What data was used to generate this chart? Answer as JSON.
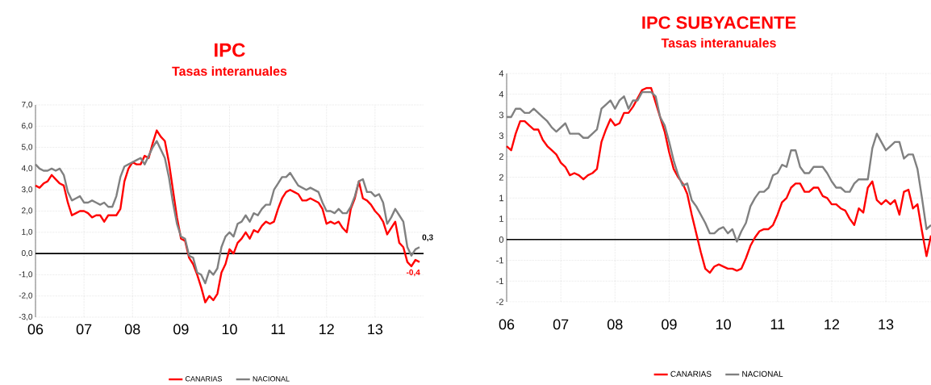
{
  "chart_data": [
    {
      "type": "line",
      "title": "IPC",
      "subtitle": "Tasas interanuales",
      "grid": true,
      "legend": "bottom",
      "ref_lines": [
        {
          "axis": "y",
          "value": 0,
          "color": "#000000"
        }
      ],
      "x": [
        "2006-01",
        "2006-02",
        "2006-03",
        "2006-04",
        "2006-05",
        "2006-06",
        "2006-07",
        "2006-08",
        "2006-09",
        "2006-10",
        "2006-11",
        "2006-12",
        "2007-01",
        "2007-02",
        "2007-03",
        "2007-04",
        "2007-05",
        "2007-06",
        "2007-07",
        "2007-08",
        "2007-09",
        "2007-10",
        "2007-11",
        "2007-12",
        "2008-01",
        "2008-02",
        "2008-03",
        "2008-04",
        "2008-05",
        "2008-06",
        "2008-07",
        "2008-08",
        "2008-09",
        "2008-10",
        "2008-11",
        "2008-12",
        "2009-01",
        "2009-02",
        "2009-03",
        "2009-04",
        "2009-05",
        "2009-06",
        "2009-07",
        "2009-08",
        "2009-09",
        "2009-10",
        "2009-11",
        "2009-12",
        "2010-01",
        "2010-02",
        "2010-03",
        "2010-04",
        "2010-05",
        "2010-06",
        "2010-07",
        "2010-08",
        "2010-09",
        "2010-10",
        "2010-11",
        "2010-12",
        "2011-01",
        "2011-02",
        "2011-03",
        "2011-04",
        "2011-05",
        "2011-06",
        "2011-07",
        "2011-08",
        "2011-09",
        "2011-10",
        "2011-11",
        "2011-12",
        "2012-01",
        "2012-02",
        "2012-03",
        "2012-04",
        "2012-05",
        "2012-06",
        "2012-07",
        "2012-08",
        "2012-09",
        "2012-10",
        "2012-11",
        "2012-12",
        "2013-01",
        "2013-02",
        "2013-03",
        "2013-04",
        "2013-05",
        "2013-06",
        "2013-07",
        "2013-08",
        "2013-09",
        "2013-10",
        "2013-11",
        "2013-12"
      ],
      "xlim": [
        "2006-01",
        "2014-01"
      ],
      "xticks": [
        {
          "value": "2006-01",
          "label": "06"
        },
        {
          "value": "2007-01",
          "label": "07"
        },
        {
          "value": "2008-01",
          "label": "08"
        },
        {
          "value": "2009-01",
          "label": "09"
        },
        {
          "value": "2010-01",
          "label": "10"
        },
        {
          "value": "2011-01",
          "label": "11"
        },
        {
          "value": "2012-01",
          "label": "12"
        },
        {
          "value": "2013-01",
          "label": "13"
        }
      ],
      "ylim": [
        -3,
        7
      ],
      "yticks": [
        {
          "value": -3,
          "label": "-3,0"
        },
        {
          "value": -2,
          "label": "-2,0"
        },
        {
          "value": -1,
          "label": "-1,0"
        },
        {
          "value": 0,
          "label": "0,0"
        },
        {
          "value": 1,
          "label": "1,0"
        },
        {
          "value": 2,
          "label": "2,0"
        },
        {
          "value": 3,
          "label": "3,0"
        },
        {
          "value": 4,
          "label": "4,0"
        },
        {
          "value": 5,
          "label": "5,0"
        },
        {
          "value": 6,
          "label": "6,0"
        },
        {
          "value": 7,
          "label": "7,0"
        }
      ],
      "series": [
        {
          "name": "CANARIAS",
          "color": "#ff0000",
          "values": [
            3.2,
            3.1,
            3.3,
            3.4,
            3.7,
            3.5,
            3.3,
            3.2,
            2.4,
            1.8,
            1.9,
            2.0,
            2.0,
            1.9,
            1.7,
            1.8,
            1.8,
            1.5,
            1.8,
            1.8,
            1.8,
            2.1,
            3.4,
            4.0,
            4.3,
            4.2,
            4.2,
            4.6,
            4.5,
            5.2,
            5.8,
            5.5,
            5.3,
            4.3,
            3.0,
            1.7,
            0.7,
            0.6,
            -0.2,
            -0.5,
            -1.0,
            -1.6,
            -2.3,
            -2.0,
            -2.2,
            -1.9,
            -0.9,
            -0.5,
            0.2,
            0.0,
            0.5,
            0.7,
            1.0,
            0.7,
            1.1,
            1.0,
            1.3,
            1.5,
            1.4,
            1.5,
            2.1,
            2.6,
            2.9,
            3.0,
            2.9,
            2.8,
            2.5,
            2.5,
            2.6,
            2.5,
            2.4,
            2.1,
            1.4,
            1.5,
            1.4,
            1.5,
            1.2,
            1.0,
            2.1,
            2.6,
            3.4,
            2.6,
            2.5,
            2.3,
            2.0,
            1.8,
            1.5,
            0.9,
            1.2,
            1.5,
            0.5,
            0.3,
            -0.4,
            -0.6,
            -0.3,
            -0.4
          ],
          "value_labels": [
            null,
            null,
            null,
            null,
            null,
            null,
            null,
            null,
            null,
            null,
            null,
            null,
            null,
            null,
            null,
            null,
            null,
            null,
            null,
            null,
            null,
            null,
            null,
            null,
            null,
            null,
            null,
            null,
            null,
            null,
            null,
            null,
            null,
            null,
            null,
            null,
            null,
            null,
            null,
            null,
            null,
            null,
            null,
            null,
            null,
            null,
            null,
            null,
            null,
            null,
            null,
            null,
            null,
            null,
            null,
            null,
            null,
            null,
            null,
            null,
            null,
            null,
            null,
            null,
            null,
            null,
            null,
            null,
            null,
            null,
            null,
            null,
            null,
            null,
            null,
            null,
            null,
            null,
            null,
            null,
            null,
            null,
            null,
            null,
            null,
            null,
            null,
            null,
            null,
            null,
            null,
            null,
            null,
            null,
            null,
            "-0,4"
          ]
        },
        {
          "name": "NACIONAL",
          "color": "#808080",
          "values": [
            4.2,
            4.0,
            3.9,
            3.9,
            4.0,
            3.9,
            4.0,
            3.7,
            2.9,
            2.5,
            2.6,
            2.7,
            2.4,
            2.4,
            2.5,
            2.4,
            2.3,
            2.4,
            2.2,
            2.2,
            2.7,
            3.6,
            4.1,
            4.2,
            4.3,
            4.4,
            4.5,
            4.2,
            4.6,
            5.0,
            5.3,
            4.9,
            4.5,
            3.6,
            2.4,
            1.4,
            0.8,
            0.7,
            -0.1,
            -0.2,
            -0.9,
            -1.0,
            -1.4,
            -0.8,
            -1.0,
            -0.7,
            0.3,
            0.8,
            1.0,
            0.8,
            1.4,
            1.5,
            1.8,
            1.5,
            1.9,
            1.8,
            2.1,
            2.3,
            2.3,
            3.0,
            3.3,
            3.6,
            3.6,
            3.8,
            3.5,
            3.2,
            3.1,
            3.0,
            3.1,
            3.0,
            2.9,
            2.4,
            2.0,
            2.0,
            1.9,
            2.1,
            1.9,
            1.9,
            2.2,
            2.7,
            3.4,
            3.5,
            2.9,
            2.9,
            2.7,
            2.8,
            2.4,
            1.4,
            1.7,
            2.1,
            1.8,
            1.5,
            0.3,
            -0.1,
            0.2,
            0.3
          ],
          "value_labels": [
            null,
            null,
            null,
            null,
            null,
            null,
            null,
            null,
            null,
            null,
            null,
            null,
            null,
            null,
            null,
            null,
            null,
            null,
            null,
            null,
            null,
            null,
            null,
            null,
            null,
            null,
            null,
            null,
            null,
            null,
            null,
            null,
            null,
            null,
            null,
            null,
            null,
            null,
            null,
            null,
            null,
            null,
            null,
            null,
            null,
            null,
            null,
            null,
            null,
            null,
            null,
            null,
            null,
            null,
            null,
            null,
            null,
            null,
            null,
            null,
            null,
            null,
            null,
            null,
            null,
            null,
            null,
            null,
            null,
            null,
            null,
            null,
            null,
            null,
            null,
            null,
            null,
            null,
            null,
            null,
            null,
            null,
            null,
            null,
            null,
            null,
            null,
            null,
            null,
            null,
            null,
            null,
            null,
            null,
            null,
            "0,3"
          ]
        }
      ]
    },
    {
      "type": "line",
      "title": "IPC SUBYACENTE",
      "subtitle": "Tasas interanuales",
      "grid": true,
      "legend": "bottom",
      "ref_lines": [
        {
          "axis": "y",
          "value": 0,
          "color": "#000000"
        }
      ],
      "x": [
        "2006-01",
        "2006-02",
        "2006-03",
        "2006-04",
        "2006-05",
        "2006-06",
        "2006-07",
        "2006-08",
        "2006-09",
        "2006-10",
        "2006-11",
        "2006-12",
        "2007-01",
        "2007-02",
        "2007-03",
        "2007-04",
        "2007-05",
        "2007-06",
        "2007-07",
        "2007-08",
        "2007-09",
        "2007-10",
        "2007-11",
        "2007-12",
        "2008-01",
        "2008-02",
        "2008-03",
        "2008-04",
        "2008-05",
        "2008-06",
        "2008-07",
        "2008-08",
        "2008-09",
        "2008-10",
        "2008-11",
        "2008-12",
        "2009-01",
        "2009-02",
        "2009-03",
        "2009-04",
        "2009-05",
        "2009-06",
        "2009-07",
        "2009-08",
        "2009-09",
        "2009-10",
        "2009-11",
        "2009-12",
        "2010-01",
        "2010-02",
        "2010-03",
        "2010-04",
        "2010-05",
        "2010-06",
        "2010-07",
        "2010-08",
        "2010-09",
        "2010-10",
        "2010-11",
        "2010-12",
        "2011-01",
        "2011-02",
        "2011-03",
        "2011-04",
        "2011-05",
        "2011-06",
        "2011-07",
        "2011-08",
        "2011-09",
        "2011-10",
        "2011-11",
        "2011-12",
        "2012-01",
        "2012-02",
        "2012-03",
        "2012-04",
        "2012-05",
        "2012-06",
        "2012-07",
        "2012-08",
        "2012-09",
        "2012-10",
        "2012-11",
        "2012-12",
        "2013-01",
        "2013-02",
        "2013-03",
        "2013-04",
        "2013-05",
        "2013-06",
        "2013-07",
        "2013-08",
        "2013-09",
        "2013-10",
        "2013-11"
      ],
      "xlim": [
        "2006-01",
        "2013-11"
      ],
      "xticks": [
        {
          "value": "2006-01",
          "label": "06"
        },
        {
          "value": "2007-01",
          "label": "07"
        },
        {
          "value": "2008-01",
          "label": "08"
        },
        {
          "value": "2009-01",
          "label": "09"
        },
        {
          "value": "2010-01",
          "label": "10"
        },
        {
          "value": "2011-01",
          "label": "11"
        },
        {
          "value": "2012-01",
          "label": "12"
        },
        {
          "value": "2013-01",
          "label": "13"
        }
      ],
      "ylim": [
        -1.5,
        4
      ],
      "yticks": [
        {
          "value": -1.5,
          "label": "-2"
        },
        {
          "value": -1,
          "label": "-1"
        },
        {
          "value": -0.5,
          "label": "-1"
        },
        {
          "value": 0,
          "label": "0"
        },
        {
          "value": 0.5,
          "label": "1"
        },
        {
          "value": 1,
          "label": "1"
        },
        {
          "value": 1.5,
          "label": "2"
        },
        {
          "value": 2,
          "label": "2"
        },
        {
          "value": 2.5,
          "label": "3"
        },
        {
          "value": 3,
          "label": "3"
        },
        {
          "value": 3.5,
          "label": "4"
        },
        {
          "value": 4,
          "label": "4"
        }
      ],
      "series": [
        {
          "name": "CANARIAS",
          "color": "#ff0000",
          "values": [
            2.25,
            2.15,
            2.55,
            2.85,
            2.85,
            2.75,
            2.65,
            2.65,
            2.4,
            2.25,
            2.15,
            2.05,
            1.85,
            1.75,
            1.55,
            1.6,
            1.55,
            1.45,
            1.55,
            1.6,
            1.7,
            2.35,
            2.65,
            2.9,
            2.75,
            2.8,
            3.05,
            3.05,
            3.2,
            3.4,
            3.6,
            3.65,
            3.65,
            3.3,
            2.95,
            2.6,
            2.1,
            1.7,
            1.5,
            1.35,
            1.1,
            0.6,
            0.15,
            -0.3,
            -0.7,
            -0.8,
            -0.65,
            -0.6,
            -0.65,
            -0.7,
            -0.7,
            -0.75,
            -0.7,
            -0.45,
            -0.15,
            0.05,
            0.2,
            0.25,
            0.25,
            0.35,
            0.6,
            0.9,
            1.0,
            1.25,
            1.35,
            1.35,
            1.15,
            1.15,
            1.25,
            1.25,
            1.05,
            1.0,
            0.85,
            0.85,
            0.75,
            0.7,
            0.5,
            0.35,
            0.75,
            0.65,
            1.25,
            1.4,
            0.95,
            0.85,
            0.95,
            0.85,
            0.95,
            0.6,
            1.15,
            1.2,
            0.75,
            0.85,
            0.2,
            -0.4,
            0.1
          ]
        },
        {
          "name": "NACIONAL",
          "color": "#808080",
          "values": [
            2.95,
            2.95,
            3.15,
            3.15,
            3.05,
            3.05,
            3.15,
            3.05,
            2.95,
            2.85,
            2.7,
            2.6,
            2.7,
            2.8,
            2.55,
            2.55,
            2.55,
            2.45,
            2.45,
            2.55,
            2.65,
            3.15,
            3.25,
            3.35,
            3.15,
            3.35,
            3.45,
            3.15,
            3.35,
            3.35,
            3.55,
            3.55,
            3.55,
            3.45,
            2.95,
            2.75,
            2.35,
            1.9,
            1.55,
            1.3,
            1.35,
            0.95,
            0.8,
            0.6,
            0.4,
            0.15,
            0.15,
            0.25,
            0.3,
            0.15,
            0.25,
            -0.05,
            0.2,
            0.4,
            0.8,
            1.0,
            1.15,
            1.15,
            1.25,
            1.55,
            1.6,
            1.8,
            1.75,
            2.15,
            2.15,
            1.75,
            1.6,
            1.6,
            1.75,
            1.75,
            1.75,
            1.6,
            1.4,
            1.25,
            1.25,
            1.15,
            1.15,
            1.35,
            1.45,
            1.45,
            1.45,
            2.2,
            2.55,
            2.35,
            2.15,
            2.25,
            2.35,
            2.35,
            1.95,
            2.05,
            2.05,
            1.7,
            1.0,
            0.25,
            0.35
          ]
        }
      ]
    }
  ]
}
